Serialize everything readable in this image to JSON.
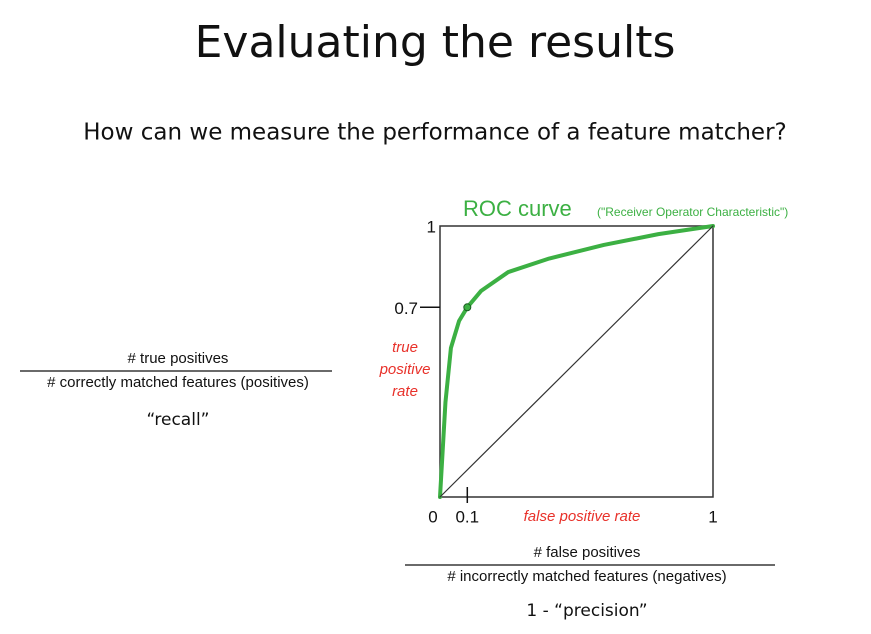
{
  "title": "Evaluating the results",
  "subtitle": "How can we measure the performance of a feature matcher?",
  "recall_fraction": {
    "numerator": "# true positives",
    "denominator": "# correctly matched features (positives)",
    "label": "“recall”"
  },
  "fpr_fraction": {
    "numerator": "# false positives",
    "denominator": "# incorrectly matched features (negatives)",
    "label": "1 - “precision”"
  },
  "chart_data": {
    "type": "line",
    "title": "ROC curve",
    "annotation": "(\"Receiver Operator Characteristic\")",
    "xlabel": "false positive rate",
    "ylabel": [
      "true",
      "positive",
      "rate"
    ],
    "xlim": [
      0,
      1
    ],
    "ylim": [
      0,
      1
    ],
    "xticks": [
      0,
      0.1,
      1
    ],
    "yticks": [
      0.7,
      1
    ],
    "series": [
      {
        "color": "#3cb043",
        "x": [
          0,
          0.02,
          0.04,
          0.07,
          0.1,
          0.15,
          0.25,
          0.4,
          0.6,
          0.8,
          1
        ],
        "values": [
          0,
          0.35,
          0.55,
          0.65,
          0.7,
          0.76,
          0.83,
          0.88,
          0.93,
          0.97,
          1
        ]
      },
      {
        "color": "#333333",
        "x": [
          0,
          1
        ],
        "values": [
          0,
          1
        ]
      }
    ]
  }
}
